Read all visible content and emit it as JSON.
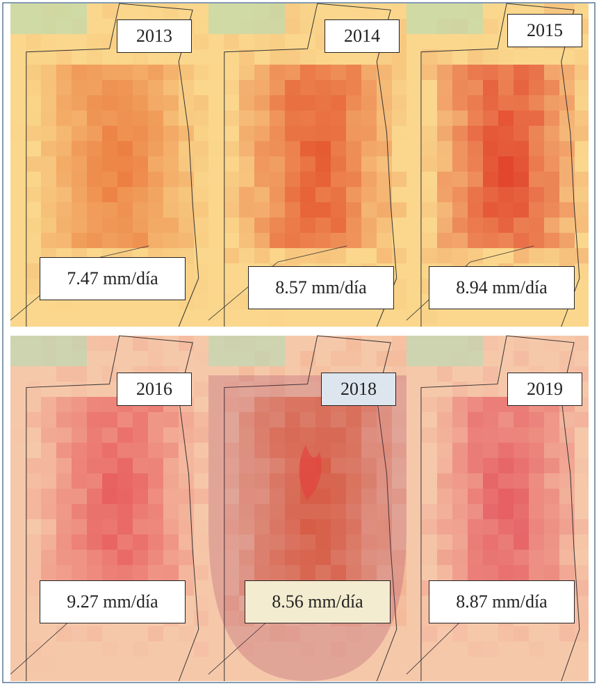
{
  "panels": [
    {
      "year": "2013",
      "value": "7.47 mm/día"
    },
    {
      "year": "2014",
      "value": "8.57 mm/día"
    },
    {
      "year": "2015",
      "value": "8.94 mm/día"
    },
    {
      "year": "2016",
      "value": "9.27 mm/día"
    },
    {
      "year": "2018",
      "value": "8.56 mm/día"
    },
    {
      "year": "2019",
      "value": "8.87 mm/día"
    }
  ]
}
